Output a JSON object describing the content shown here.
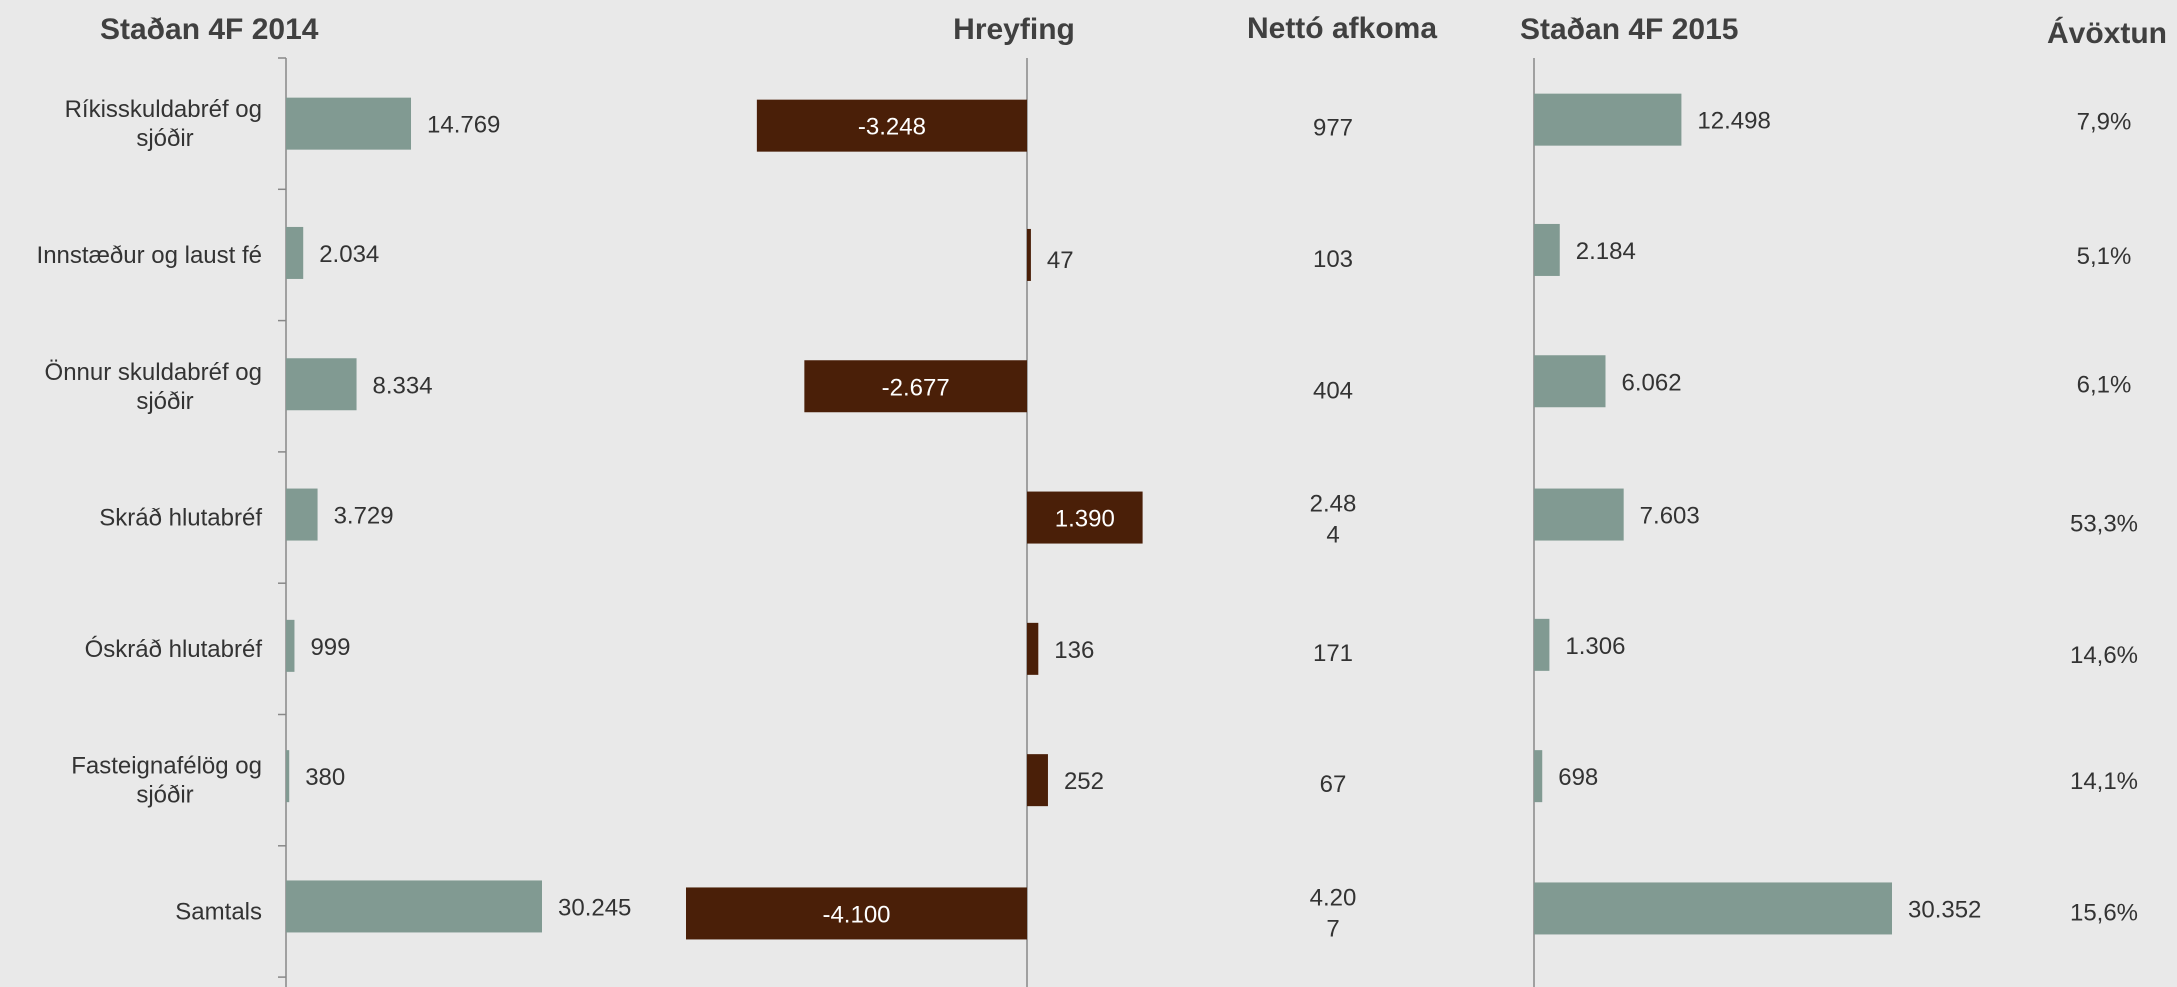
{
  "chart_data": {
    "type": "bar",
    "headers": {
      "staða_2014": "Staðan 4F 2014",
      "hreyfing": "Hreyfing",
      "netto": "Nettó afkoma",
      "staða_2015": "Staðan 4F 2015",
      "avoxtun": "Ávöxtun"
    },
    "categories": [
      [
        "Ríkisskuldabréf og",
        "sjóðir"
      ],
      [
        "Innstæður og laust fé"
      ],
      [
        "Önnur skuldabréf og",
        "sjóðir"
      ],
      [
        "Skráð hlutabréf"
      ],
      [
        "Óskráð hlutabréf"
      ],
      [
        "Fasteignafélög og",
        "sjóðir"
      ],
      [
        "Samtals"
      ]
    ],
    "series": [
      {
        "name": "Staðan 4F 2014",
        "values": [
          14769,
          2034,
          8334,
          3729,
          999,
          380,
          30245
        ],
        "labels": [
          "14.769",
          "2.034",
          "8.334",
          "3.729",
          "999",
          "380",
          "30.245"
        ]
      },
      {
        "name": "Hreyfing",
        "values": [
          -3248,
          47,
          -2677,
          1390,
          136,
          252,
          -4100
        ],
        "labels": [
          "-3.248",
          "47",
          "-2.677",
          "1.390",
          "136",
          "252",
          "-4.100"
        ]
      },
      {
        "name": "Nettó afkoma",
        "values": [
          977,
          103,
          404,
          2484,
          171,
          67,
          4207
        ],
        "labels": [
          [
            "977"
          ],
          [
            "103"
          ],
          [
            "404"
          ],
          [
            "2.48",
            "4"
          ],
          [
            "171"
          ],
          [
            "67"
          ],
          [
            "4.20",
            "7"
          ]
        ]
      },
      {
        "name": "Staðan 4F 2015",
        "values": [
          12498,
          2184,
          6062,
          7603,
          1306,
          698,
          30352
        ],
        "labels": [
          "12.498",
          "2.184",
          "6.062",
          "7.603",
          "1.306",
          "698",
          "30.352"
        ]
      },
      {
        "name": "Ávöxtun",
        "values": [
          7.9,
          5.1,
          6.1,
          53.3,
          14.6,
          14.1,
          15.6
        ],
        "labels": [
          "7,9%",
          "5,1%",
          "6,1%",
          "53,3%",
          "14,6%",
          "14,1%",
          "15,6%"
        ]
      }
    ],
    "colors": {
      "stock": "#819a92",
      "movement": "#4a1f08",
      "background": "#e9e9e9"
    }
  }
}
